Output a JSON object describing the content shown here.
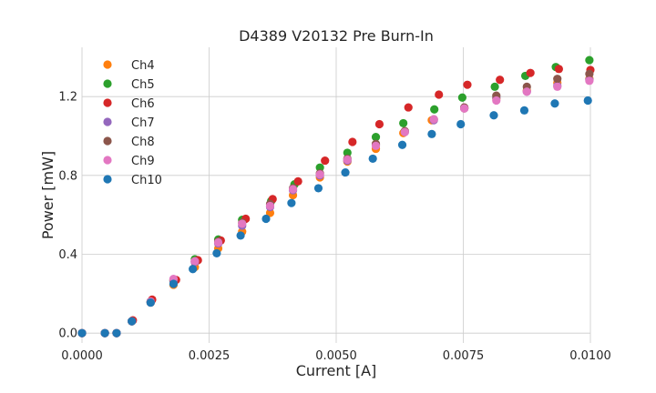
{
  "chart_data": {
    "type": "scatter",
    "title": "D4389 V20132 Pre Burn-In",
    "xlabel": "Current [A]",
    "ylabel": "Power [mW]",
    "xlim": [
      0.0,
      0.01
    ],
    "ylim": [
      -0.05,
      1.45
    ],
    "xticks": [
      0.0,
      0.0025,
      0.005,
      0.0075,
      0.01
    ],
    "xtick_labels": [
      "0.0000",
      "0.0025",
      "0.0050",
      "0.0075",
      "0.0100"
    ],
    "yticks": [
      0.0,
      0.4,
      0.8,
      1.2
    ],
    "ytick_labels": [
      "0.0",
      "0.4",
      "0.8",
      "1.2"
    ],
    "grid": true,
    "legend_position": "top-left",
    "series": [
      {
        "name": "Ch4",
        "color": "#ff7f0e",
        "x": [
          0.0,
          0.00045,
          0.00068,
          0.00098,
          0.00135,
          0.0018,
          0.00222,
          0.00268,
          0.00315,
          0.0037,
          0.00415,
          0.00468,
          0.00522,
          0.00578,
          0.00632,
          0.00688,
          0.00752,
          0.00815,
          0.00875,
          0.00935,
          0.00998
        ],
        "y": [
          0.0,
          0.0,
          0.0,
          0.06,
          0.155,
          0.245,
          0.335,
          0.43,
          0.515,
          0.61,
          0.7,
          0.79,
          0.87,
          0.935,
          1.015,
          1.08,
          1.14,
          1.19,
          1.23,
          1.27,
          1.29
        ]
      },
      {
        "name": "Ch5",
        "color": "#2ca02c",
        "x": [
          0.0,
          0.00045,
          0.00068,
          0.00098,
          0.00135,
          0.0018,
          0.00222,
          0.00268,
          0.00315,
          0.00372,
          0.00418,
          0.00468,
          0.00522,
          0.00578,
          0.00632,
          0.00693,
          0.00748,
          0.00812,
          0.00872,
          0.00932,
          0.00998
        ],
        "y": [
          0.0,
          0.0,
          0.0,
          0.06,
          0.16,
          0.265,
          0.375,
          0.475,
          0.575,
          0.67,
          0.755,
          0.84,
          0.915,
          0.995,
          1.065,
          1.135,
          1.195,
          1.25,
          1.305,
          1.35,
          1.385
        ]
      },
      {
        "name": "Ch6",
        "color": "#d62728",
        "x": [
          0.0,
          0.00045,
          0.00068,
          0.001,
          0.00138,
          0.00185,
          0.00228,
          0.00273,
          0.00322,
          0.00375,
          0.00425,
          0.00478,
          0.00532,
          0.00585,
          0.00642,
          0.00702,
          0.00758,
          0.00822,
          0.00882,
          0.00938,
          0.01
        ],
        "y": [
          0.0,
          0.0,
          0.0,
          0.065,
          0.17,
          0.27,
          0.37,
          0.47,
          0.58,
          0.68,
          0.77,
          0.875,
          0.97,
          1.06,
          1.145,
          1.21,
          1.26,
          1.285,
          1.32,
          1.34,
          1.335
        ]
      },
      {
        "name": "Ch7",
        "color": "#9467bd",
        "x": [
          0.0,
          0.00045,
          0.00068,
          0.00098,
          0.00135,
          0.0018,
          0.00222,
          0.00268,
          0.00315,
          0.0037,
          0.00415,
          0.00468,
          0.00522,
          0.00578,
          0.00635,
          0.00692,
          0.00752,
          0.00815,
          0.00875,
          0.00935,
          0.00998
        ],
        "y": [
          0.0,
          0.0,
          0.0,
          0.06,
          0.155,
          0.265,
          0.36,
          0.455,
          0.545,
          0.64,
          0.725,
          0.8,
          0.875,
          0.955,
          1.02,
          1.08,
          1.14,
          1.195,
          1.225,
          1.255,
          1.285
        ]
      },
      {
        "name": "Ch8",
        "color": "#8c564b",
        "x": [
          0.0,
          0.00045,
          0.00068,
          0.00098,
          0.00135,
          0.0018,
          0.00222,
          0.00268,
          0.00315,
          0.0037,
          0.00415,
          0.00468,
          0.00522,
          0.00578,
          0.00635,
          0.00692,
          0.00752,
          0.00815,
          0.00875,
          0.00935,
          0.00998
        ],
        "y": [
          0.0,
          0.0,
          0.0,
          0.06,
          0.16,
          0.27,
          0.365,
          0.465,
          0.56,
          0.655,
          0.735,
          0.81,
          0.885,
          0.96,
          1.025,
          1.085,
          1.145,
          1.205,
          1.25,
          1.29,
          1.315
        ]
      },
      {
        "name": "Ch9",
        "color": "#e377c2",
        "x": [
          0.0,
          0.00045,
          0.00068,
          0.00098,
          0.00135,
          0.0018,
          0.00222,
          0.00268,
          0.00315,
          0.0037,
          0.00415,
          0.00468,
          0.00522,
          0.00578,
          0.00635,
          0.00692,
          0.00752,
          0.00815,
          0.00875,
          0.00935,
          0.00998
        ],
        "y": [
          0.0,
          0.0,
          0.0,
          0.06,
          0.16,
          0.275,
          0.365,
          0.46,
          0.555,
          0.645,
          0.73,
          0.805,
          0.88,
          0.95,
          1.02,
          1.085,
          1.14,
          1.18,
          1.225,
          1.25,
          1.28
        ]
      },
      {
        "name": "Ch10",
        "color": "#1f77b4",
        "x": [
          0.0,
          0.00045,
          0.00068,
          0.00098,
          0.00135,
          0.0018,
          0.00218,
          0.00265,
          0.00312,
          0.00362,
          0.00412,
          0.00465,
          0.00518,
          0.00572,
          0.0063,
          0.00688,
          0.00745,
          0.0081,
          0.0087,
          0.0093,
          0.00995
        ],
        "y": [
          0.0,
          0.0,
          0.0,
          0.06,
          0.155,
          0.25,
          0.325,
          0.405,
          0.495,
          0.58,
          0.66,
          0.735,
          0.815,
          0.885,
          0.955,
          1.01,
          1.06,
          1.105,
          1.13,
          1.165,
          1.18
        ]
      }
    ]
  }
}
